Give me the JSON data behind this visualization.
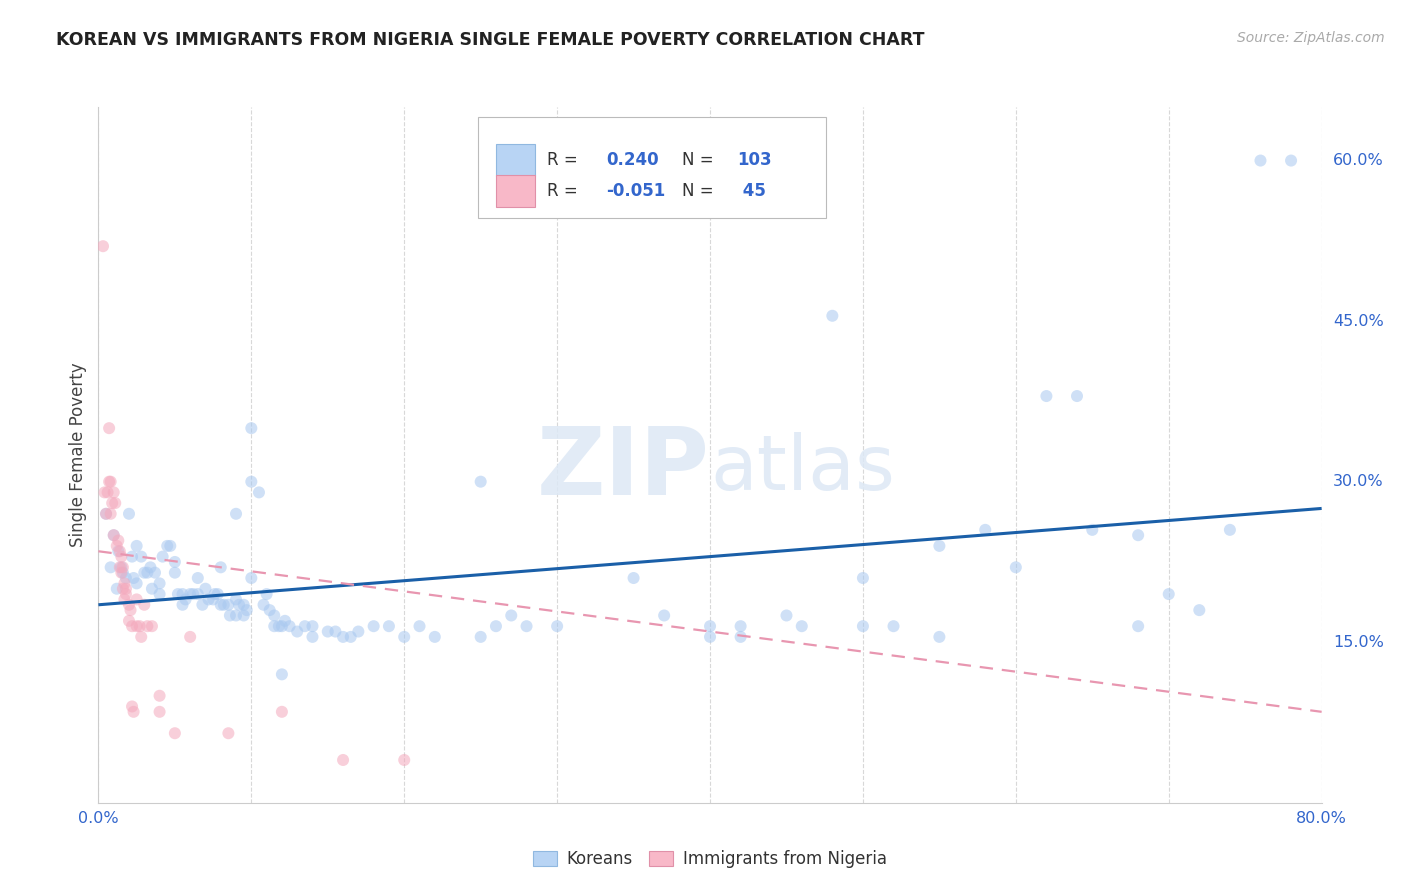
{
  "title": "KOREAN VS IMMIGRANTS FROM NIGERIA SINGLE FEMALE POVERTY CORRELATION CHART",
  "source_text": "Source: ZipAtlas.com",
  "ylabel": "Single Female Poverty",
  "background_color": "#ffffff",
  "watermark": "ZIPatlas",
  "xlim": [
    0.0,
    0.8
  ],
  "ylim": [
    0.0,
    0.65
  ],
  "xtick_pos": [
    0.0,
    0.1,
    0.2,
    0.3,
    0.4,
    0.5,
    0.6,
    0.7,
    0.8
  ],
  "xticklabels": [
    "0.0%",
    "",
    "",
    "",
    "",
    "",
    "",
    "",
    "80.0%"
  ],
  "yticks_right": [
    0.15,
    0.3,
    0.45,
    0.6
  ],
  "ytick_right_labels": [
    "15.0%",
    "30.0%",
    "45.0%",
    "60.0%"
  ],
  "korean_color": "#a8c8f0",
  "nigeria_color": "#f4a8bc",
  "korean_line_color": "#1a5fa8",
  "nigeria_line_color": "#e896b0",
  "legend_korean_box": "#b8d4f4",
  "legend_nigeria_box": "#f8b8c8",
  "korean_points": [
    [
      0.005,
      0.27
    ],
    [
      0.008,
      0.22
    ],
    [
      0.01,
      0.25
    ],
    [
      0.012,
      0.2
    ],
    [
      0.013,
      0.235
    ],
    [
      0.015,
      0.22
    ],
    [
      0.016,
      0.215
    ],
    [
      0.018,
      0.21
    ],
    [
      0.02,
      0.27
    ],
    [
      0.022,
      0.23
    ],
    [
      0.023,
      0.21
    ],
    [
      0.025,
      0.24
    ],
    [
      0.025,
      0.205
    ],
    [
      0.028,
      0.23
    ],
    [
      0.03,
      0.215
    ],
    [
      0.032,
      0.215
    ],
    [
      0.034,
      0.22
    ],
    [
      0.035,
      0.2
    ],
    [
      0.037,
      0.215
    ],
    [
      0.04,
      0.195
    ],
    [
      0.04,
      0.205
    ],
    [
      0.042,
      0.23
    ],
    [
      0.045,
      0.24
    ],
    [
      0.047,
      0.24
    ],
    [
      0.05,
      0.225
    ],
    [
      0.05,
      0.215
    ],
    [
      0.052,
      0.195
    ],
    [
      0.055,
      0.195
    ],
    [
      0.055,
      0.185
    ],
    [
      0.057,
      0.19
    ],
    [
      0.06,
      0.195
    ],
    [
      0.062,
      0.195
    ],
    [
      0.065,
      0.21
    ],
    [
      0.065,
      0.195
    ],
    [
      0.068,
      0.185
    ],
    [
      0.07,
      0.2
    ],
    [
      0.072,
      0.19
    ],
    [
      0.075,
      0.19
    ],
    [
      0.076,
      0.195
    ],
    [
      0.078,
      0.195
    ],
    [
      0.08,
      0.185
    ],
    [
      0.08,
      0.22
    ],
    [
      0.082,
      0.185
    ],
    [
      0.085,
      0.185
    ],
    [
      0.086,
      0.175
    ],
    [
      0.09,
      0.27
    ],
    [
      0.09,
      0.19
    ],
    [
      0.09,
      0.175
    ],
    [
      0.092,
      0.185
    ],
    [
      0.095,
      0.185
    ],
    [
      0.095,
      0.175
    ],
    [
      0.097,
      0.18
    ],
    [
      0.1,
      0.35
    ],
    [
      0.1,
      0.3
    ],
    [
      0.1,
      0.21
    ],
    [
      0.105,
      0.29
    ],
    [
      0.108,
      0.185
    ],
    [
      0.11,
      0.195
    ],
    [
      0.112,
      0.18
    ],
    [
      0.115,
      0.175
    ],
    [
      0.115,
      0.165
    ],
    [
      0.118,
      0.165
    ],
    [
      0.12,
      0.12
    ],
    [
      0.12,
      0.165
    ],
    [
      0.122,
      0.17
    ],
    [
      0.125,
      0.165
    ],
    [
      0.13,
      0.16
    ],
    [
      0.135,
      0.165
    ],
    [
      0.14,
      0.155
    ],
    [
      0.14,
      0.165
    ],
    [
      0.15,
      0.16
    ],
    [
      0.155,
      0.16
    ],
    [
      0.16,
      0.155
    ],
    [
      0.165,
      0.155
    ],
    [
      0.17,
      0.16
    ],
    [
      0.18,
      0.165
    ],
    [
      0.19,
      0.165
    ],
    [
      0.2,
      0.155
    ],
    [
      0.21,
      0.165
    ],
    [
      0.22,
      0.155
    ],
    [
      0.25,
      0.3
    ],
    [
      0.25,
      0.155
    ],
    [
      0.26,
      0.165
    ],
    [
      0.27,
      0.175
    ],
    [
      0.28,
      0.165
    ],
    [
      0.3,
      0.165
    ],
    [
      0.35,
      0.21
    ],
    [
      0.37,
      0.175
    ],
    [
      0.4,
      0.165
    ],
    [
      0.4,
      0.155
    ],
    [
      0.42,
      0.155
    ],
    [
      0.42,
      0.165
    ],
    [
      0.45,
      0.175
    ],
    [
      0.46,
      0.165
    ],
    [
      0.48,
      0.455
    ],
    [
      0.5,
      0.21
    ],
    [
      0.5,
      0.165
    ],
    [
      0.52,
      0.165
    ],
    [
      0.55,
      0.24
    ],
    [
      0.55,
      0.155
    ],
    [
      0.58,
      0.255
    ],
    [
      0.6,
      0.22
    ],
    [
      0.62,
      0.38
    ],
    [
      0.64,
      0.38
    ],
    [
      0.65,
      0.255
    ],
    [
      0.68,
      0.25
    ],
    [
      0.68,
      0.165
    ],
    [
      0.7,
      0.195
    ],
    [
      0.72,
      0.18
    ],
    [
      0.74,
      0.255
    ],
    [
      0.76,
      0.6
    ],
    [
      0.78,
      0.6
    ]
  ],
  "nigeria_points": [
    [
      0.003,
      0.52
    ],
    [
      0.004,
      0.29
    ],
    [
      0.005,
      0.27
    ],
    [
      0.006,
      0.29
    ],
    [
      0.007,
      0.35
    ],
    [
      0.007,
      0.3
    ],
    [
      0.008,
      0.3
    ],
    [
      0.008,
      0.27
    ],
    [
      0.009,
      0.28
    ],
    [
      0.01,
      0.29
    ],
    [
      0.01,
      0.25
    ],
    [
      0.011,
      0.28
    ],
    [
      0.012,
      0.24
    ],
    [
      0.013,
      0.245
    ],
    [
      0.014,
      0.235
    ],
    [
      0.014,
      0.22
    ],
    [
      0.015,
      0.23
    ],
    [
      0.015,
      0.215
    ],
    [
      0.016,
      0.22
    ],
    [
      0.016,
      0.2
    ],
    [
      0.017,
      0.205
    ],
    [
      0.017,
      0.19
    ],
    [
      0.018,
      0.195
    ],
    [
      0.018,
      0.2
    ],
    [
      0.02,
      0.185
    ],
    [
      0.02,
      0.17
    ],
    [
      0.021,
      0.18
    ],
    [
      0.022,
      0.165
    ],
    [
      0.022,
      0.09
    ],
    [
      0.023,
      0.085
    ],
    [
      0.025,
      0.19
    ],
    [
      0.025,
      0.165
    ],
    [
      0.027,
      0.165
    ],
    [
      0.028,
      0.155
    ],
    [
      0.03,
      0.185
    ],
    [
      0.032,
      0.165
    ],
    [
      0.035,
      0.165
    ],
    [
      0.04,
      0.1
    ],
    [
      0.04,
      0.085
    ],
    [
      0.05,
      0.065
    ],
    [
      0.06,
      0.155
    ],
    [
      0.085,
      0.065
    ],
    [
      0.12,
      0.085
    ],
    [
      0.16,
      0.04
    ],
    [
      0.2,
      0.04
    ]
  ],
  "korean_trend_x": [
    0.0,
    0.8
  ],
  "korean_trend_y": [
    0.185,
    0.275
  ],
  "nigeria_trend_x": [
    0.0,
    0.8
  ],
  "nigeria_trend_y": [
    0.235,
    0.085
  ],
  "grid_color": "#d8d8d8",
  "marker_size": 75,
  "marker_alpha": 0.55
}
